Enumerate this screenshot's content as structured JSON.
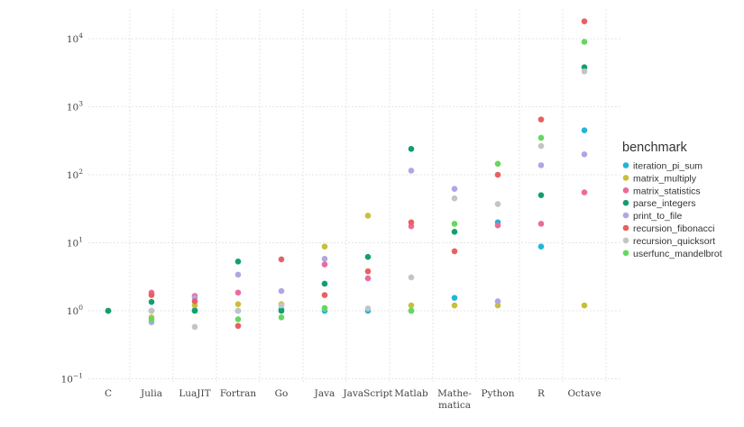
{
  "chart_data": {
    "type": "scatter",
    "y_scale": "log",
    "ylim": [
      0.1,
      20000
    ],
    "y_ticks": [
      {
        "value": 0.1,
        "base": "10",
        "exp": "−1"
      },
      {
        "value": 1,
        "base": "10",
        "exp": "0"
      },
      {
        "value": 10,
        "base": "10",
        "exp": "1"
      },
      {
        "value": 100,
        "base": "10",
        "exp": "2"
      },
      {
        "value": 1000,
        "base": "10",
        "exp": "3"
      },
      {
        "value": 10000,
        "base": "10",
        "exp": "4"
      }
    ],
    "categories": [
      {
        "label": "C"
      },
      {
        "label": "Julia"
      },
      {
        "label": "LuaJIT"
      },
      {
        "label": "Fortran"
      },
      {
        "label": "Go"
      },
      {
        "label": "Java"
      },
      {
        "label": "JavaScript"
      },
      {
        "label": "Matlab"
      },
      {
        "label": "Mathe-",
        "label2": "matica"
      },
      {
        "label": "Python"
      },
      {
        "label": "R"
      },
      {
        "label": "Octave"
      }
    ],
    "grid": true,
    "legend": {
      "title": "benchmark",
      "placement": "right"
    },
    "series": [
      {
        "name": "iteration_pi_sum",
        "color": "#1fb6d8",
        "values": [
          1.0,
          1.0,
          1.02,
          1.0,
          1.05,
          1.0,
          1.0,
          1.0,
          1.55,
          20.0,
          8.8,
          450
        ]
      },
      {
        "name": "matrix_multiply",
        "color": "#c8bf3a",
        "values": [
          1.0,
          0.8,
          1.2,
          1.25,
          1.25,
          8.8,
          25.0,
          1.2,
          1.2,
          1.2,
          null,
          1.2
        ]
      },
      {
        "name": "matrix_statistics",
        "color": "#ec6a9e",
        "values": [
          null,
          1.85,
          1.65,
          1.85,
          null,
          4.8,
          3.0,
          17.5,
          null,
          18.0,
          19.0,
          55
        ]
      },
      {
        "name": "parse_integers",
        "color": "#139f6c",
        "values": [
          1.0,
          1.35,
          1.0,
          5.3,
          1.0,
          2.5,
          6.2,
          240,
          14.5,
          null,
          50,
          3800
        ]
      },
      {
        "name": "print_to_file",
        "color": "#b0a6e3",
        "values": [
          null,
          0.68,
          1.55,
          3.4,
          1.95,
          5.8,
          null,
          115,
          62,
          1.38,
          138,
          200
        ]
      },
      {
        "name": "recursion_fibonacci",
        "color": "#e86060",
        "values": [
          null,
          1.7,
          1.38,
          0.6,
          5.7,
          1.7,
          3.8,
          20.0,
          7.5,
          100,
          650,
          18000
        ]
      },
      {
        "name": "recursion_quicksort",
        "color": "#c4c4c4",
        "values": [
          null,
          1.0,
          0.58,
          1.0,
          1.2,
          1.08,
          1.08,
          3.1,
          45,
          37,
          265,
          3300
        ]
      },
      {
        "name": "userfunc_mandelbrot",
        "color": "#62d95e",
        "values": [
          null,
          0.75,
          null,
          0.75,
          0.8,
          1.1,
          null,
          1.0,
          19,
          145,
          350,
          9000
        ]
      }
    ]
  }
}
